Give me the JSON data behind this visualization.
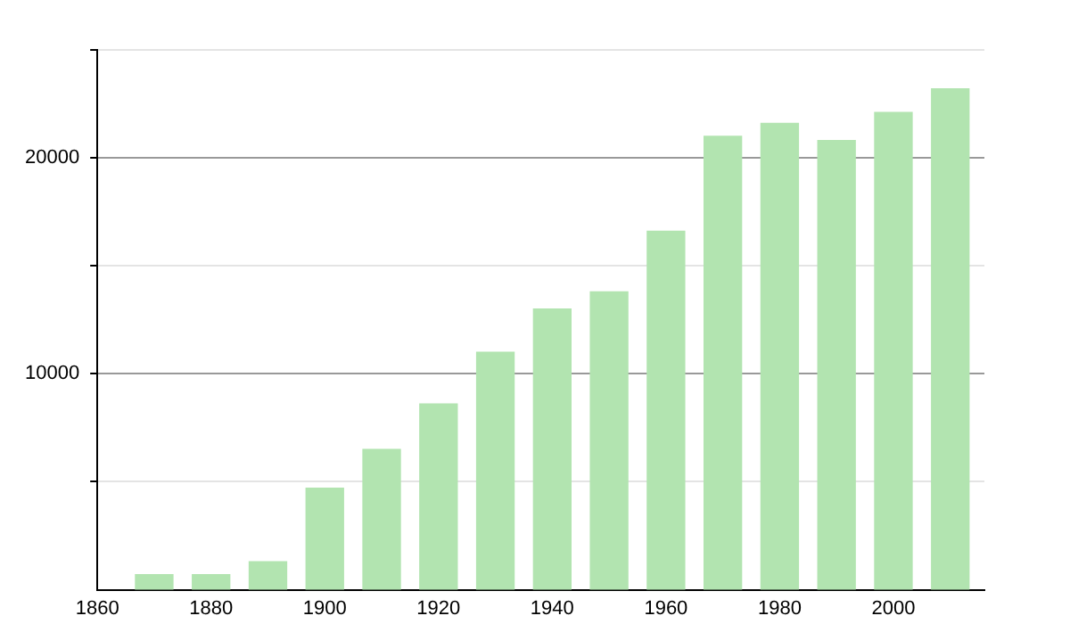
{
  "chart_data": {
    "type": "bar",
    "x": [
      1870,
      1880,
      1890,
      1900,
      1910,
      1920,
      1930,
      1940,
      1950,
      1960,
      1970,
      1980,
      1990,
      2000,
      2010
    ],
    "values": [
      700,
      700,
      1300,
      4700,
      6500,
      8600,
      11000,
      13000,
      13800,
      16600,
      21000,
      21600,
      20800,
      22100,
      23200
    ],
    "color": "#b2e4b0",
    "xlim": [
      1860,
      2016
    ],
    "xticks": [
      1860,
      1880,
      1900,
      1920,
      1940,
      1960,
      1980,
      2000
    ],
    "ylim": [
      0,
      25000
    ],
    "yticks": [
      {
        "value": 5000,
        "label": null
      },
      10000,
      {
        "value": 15000,
        "label": null
      },
      20000,
      {
        "value": 25000,
        "label": null
      }
    ],
    "grid": "y"
  }
}
